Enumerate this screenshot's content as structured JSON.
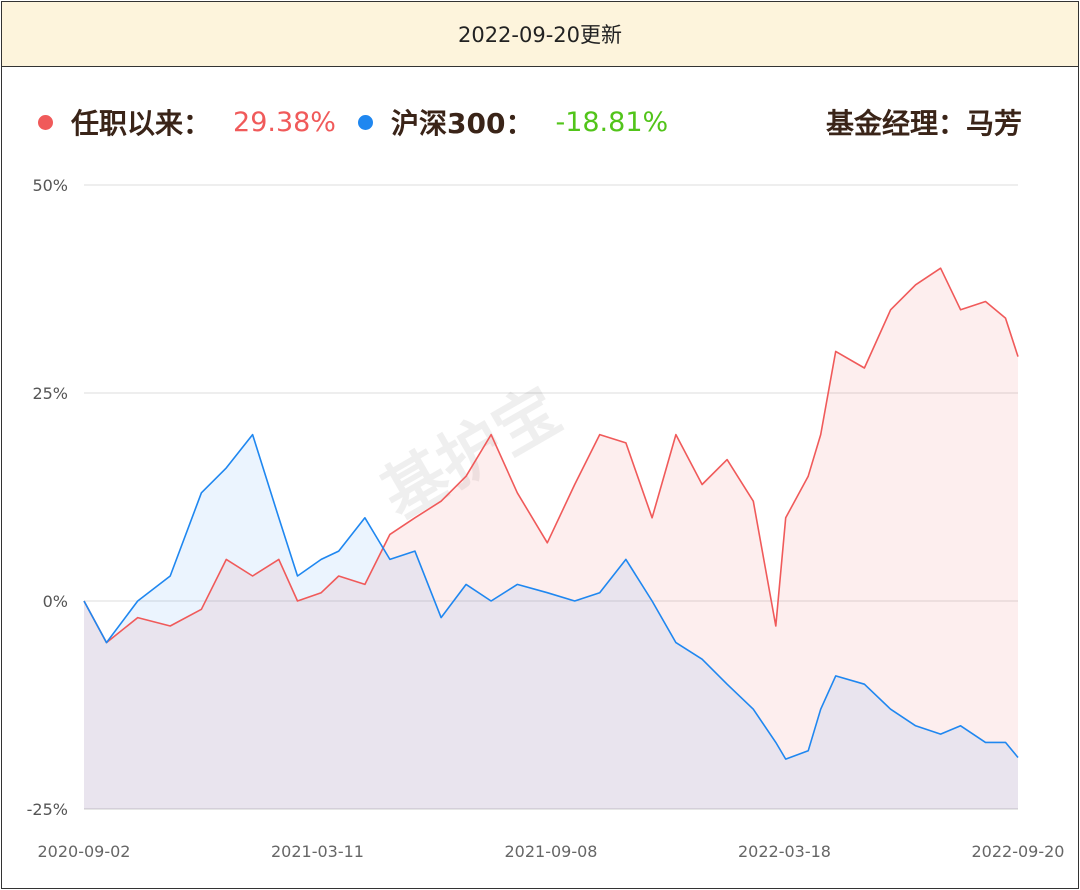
{
  "header": {
    "title": "2022-09-20更新"
  },
  "legend": {
    "fund_label": "任职以来：",
    "fund_value": "29.38%",
    "index_label": "沪深300：",
    "index_value": "-18.81%",
    "manager": "基金经理：马芳"
  },
  "watermark": "基护宝",
  "colors": {
    "fund": "#f05a5a",
    "index": "#1f87f0",
    "positive_text": "#f05a5a",
    "negative_text": "#52c41a",
    "header_bg": "#fdf4dc"
  },
  "chart_data": {
    "type": "area",
    "ylim": [
      -25,
      50
    ],
    "y_ticks": [
      50,
      25,
      0,
      -25
    ],
    "y_tick_labels": [
      "50%",
      "25%",
      "0%",
      "-25%"
    ],
    "x_tick_labels": [
      "2020-09-02",
      "2021-03-11",
      "2021-09-08",
      "2022-03-18",
      "2022-09-20"
    ],
    "grid": true,
    "series": [
      {
        "name": "任职以来",
        "color": "#f05a5a",
        "x": [
          "2020-09-02",
          "2020-09-20",
          "2020-10-15",
          "2020-11-10",
          "2020-12-05",
          "2020-12-25",
          "2021-01-15",
          "2021-02-05",
          "2021-02-20",
          "2021-03-11",
          "2021-03-25",
          "2021-04-15",
          "2021-05-05",
          "2021-05-25",
          "2021-06-15",
          "2021-07-05",
          "2021-07-25",
          "2021-08-15",
          "2021-09-08",
          "2021-09-30",
          "2021-10-20",
          "2021-11-10",
          "2021-12-01",
          "2021-12-20",
          "2022-01-10",
          "2022-01-30",
          "2022-02-20",
          "2022-03-10",
          "2022-03-18",
          "2022-04-05",
          "2022-04-15",
          "2022-04-27",
          "2022-05-20",
          "2022-06-10",
          "2022-06-30",
          "2022-07-20",
          "2022-08-05",
          "2022-08-25",
          "2022-09-10",
          "2022-09-20"
        ],
        "values": [
          0,
          -5,
          -2,
          -3,
          -1,
          5,
          3,
          5,
          0,
          1,
          3,
          2,
          8,
          10,
          12,
          15,
          20,
          13,
          7,
          14,
          20,
          19,
          10,
          20,
          14,
          17,
          12,
          -3,
          10,
          15,
          20,
          30,
          28,
          35,
          38,
          40,
          35,
          36,
          34,
          29.38
        ]
      },
      {
        "name": "沪深300",
        "color": "#1f87f0",
        "x": [
          "2020-09-02",
          "2020-09-20",
          "2020-10-15",
          "2020-11-10",
          "2020-12-05",
          "2020-12-25",
          "2021-01-15",
          "2021-02-05",
          "2021-02-20",
          "2021-03-11",
          "2021-03-25",
          "2021-04-15",
          "2021-05-05",
          "2021-05-25",
          "2021-06-15",
          "2021-07-05",
          "2021-07-25",
          "2021-08-15",
          "2021-09-08",
          "2021-09-30",
          "2021-10-20",
          "2021-11-10",
          "2021-12-01",
          "2021-12-20",
          "2022-01-10",
          "2022-01-30",
          "2022-02-20",
          "2022-03-10",
          "2022-03-18",
          "2022-04-05",
          "2022-04-15",
          "2022-04-27",
          "2022-05-20",
          "2022-06-10",
          "2022-06-30",
          "2022-07-20",
          "2022-08-05",
          "2022-08-25",
          "2022-09-10",
          "2022-09-20"
        ],
        "values": [
          0,
          -5,
          0,
          3,
          13,
          16,
          20,
          10,
          3,
          5,
          6,
          10,
          5,
          6,
          -2,
          2,
          0,
          2,
          1,
          0,
          1,
          5,
          0,
          -5,
          -7,
          -10,
          -13,
          -17,
          -19,
          -18,
          -13,
          -9,
          -10,
          -13,
          -15,
          -16,
          -15,
          -17,
          -17,
          -18.81
        ]
      }
    ]
  }
}
